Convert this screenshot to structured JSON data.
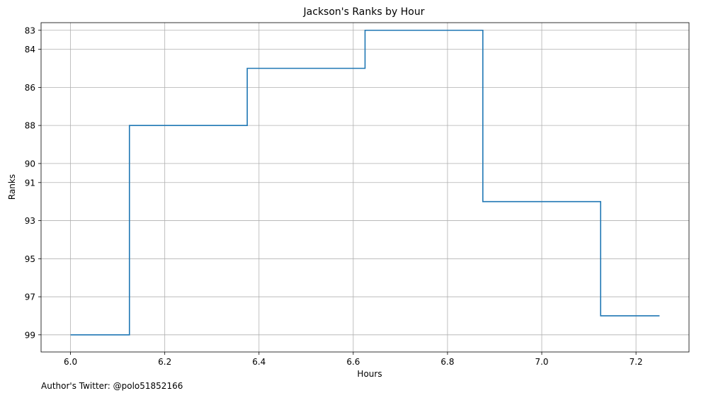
{
  "chart_data": {
    "type": "line",
    "step": "mid",
    "title": "Jackson's Ranks by Hour",
    "xlabel": "Hours",
    "ylabel": "Ranks",
    "x": [
      6.0,
      6.25,
      6.5,
      6.75,
      7.0,
      7.25
    ],
    "y": [
      99,
      88,
      85,
      83,
      92,
      98
    ],
    "xlim": [
      5.9375,
      7.3125
    ],
    "ylim": [
      99.9,
      82.6
    ],
    "y_inverted": true,
    "xticks": [
      6.0,
      6.2,
      6.4,
      6.6,
      6.8,
      7.0,
      7.2
    ],
    "xtick_labels": [
      "6.0",
      "6.2",
      "6.4",
      "6.6",
      "6.8",
      "7.0",
      "7.2"
    ],
    "yticks": [
      83,
      84,
      86,
      88,
      90,
      91,
      93,
      95,
      97,
      99
    ],
    "ytick_labels": [
      "83",
      "84",
      "86",
      "88",
      "90",
      "91",
      "93",
      "95",
      "97",
      "99"
    ],
    "grid": true,
    "line_color": "#1f77b4",
    "grid_color": "#b0b0b0"
  },
  "footer": {
    "note": "Author's Twitter: @polo51852166"
  }
}
